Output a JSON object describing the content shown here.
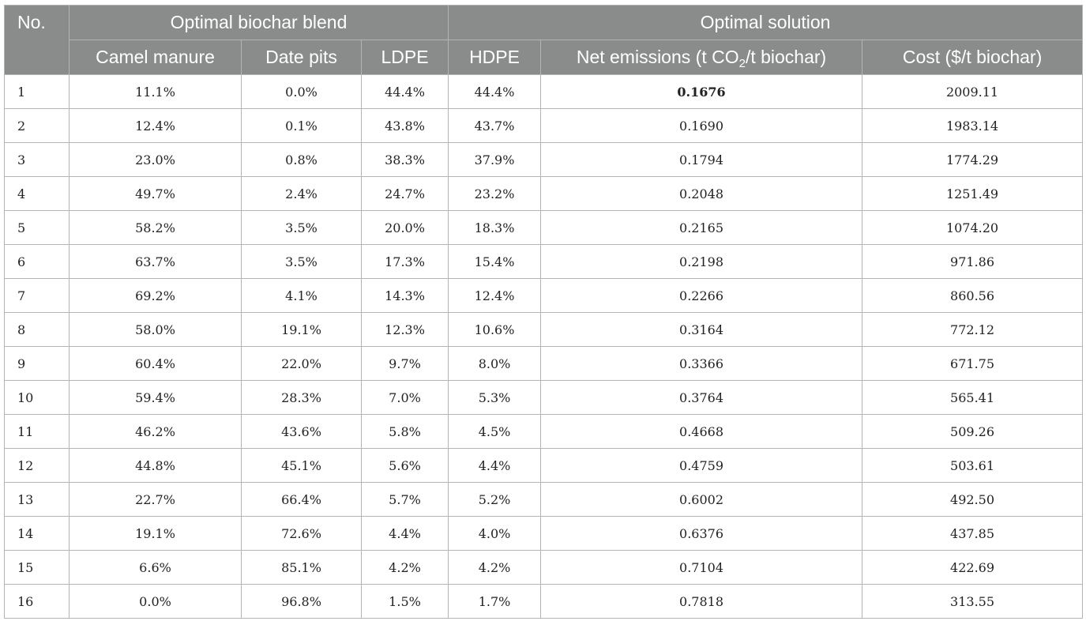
{
  "headers": {
    "no": "No.",
    "group_blend": "Optimal biochar blend",
    "group_solution": "Optimal solution",
    "camel": "Camel manure",
    "date": "Date pits",
    "ldpe": "LDPE",
    "hdpe": "HDPE",
    "net_prefix": "Net emissions (t CO",
    "net_sub": "2",
    "net_suffix": "/t biochar)",
    "cost": "Cost ($/t biochar)"
  },
  "rows": [
    {
      "no": "1",
      "camel": "11.1%",
      "date": "0.0%",
      "ldpe": "44.4%",
      "hdpe": "44.4%",
      "net": "0.1676",
      "cost": "2009.11",
      "net_bold": true
    },
    {
      "no": "2",
      "camel": "12.4%",
      "date": "0.1%",
      "ldpe": "43.8%",
      "hdpe": "43.7%",
      "net": "0.1690",
      "cost": "1983.14"
    },
    {
      "no": "3",
      "camel": "23.0%",
      "date": "0.8%",
      "ldpe": "38.3%",
      "hdpe": "37.9%",
      "net": "0.1794",
      "cost": "1774.29"
    },
    {
      "no": "4",
      "camel": "49.7%",
      "date": "2.4%",
      "ldpe": "24.7%",
      "hdpe": "23.2%",
      "net": "0.2048",
      "cost": "1251.49"
    },
    {
      "no": "5",
      "camel": "58.2%",
      "date": "3.5%",
      "ldpe": "20.0%",
      "hdpe": "18.3%",
      "net": "0.2165",
      "cost": "1074.20"
    },
    {
      "no": "6",
      "camel": "63.7%",
      "date": "3.5%",
      "ldpe": "17.3%",
      "hdpe": "15.4%",
      "net": "0.2198",
      "cost": "971.86"
    },
    {
      "no": "7",
      "camel": "69.2%",
      "date": "4.1%",
      "ldpe": "14.3%",
      "hdpe": "12.4%",
      "net": "0.2266",
      "cost": "860.56"
    },
    {
      "no": "8",
      "camel": "58.0%",
      "date": "19.1%",
      "ldpe": "12.3%",
      "hdpe": "10.6%",
      "net": "0.3164",
      "cost": "772.12"
    },
    {
      "no": "9",
      "camel": "60.4%",
      "date": "22.0%",
      "ldpe": "9.7%",
      "hdpe": "8.0%",
      "net": "0.3366",
      "cost": "671.75"
    },
    {
      "no": "10",
      "camel": "59.4%",
      "date": "28.3%",
      "ldpe": "7.0%",
      "hdpe": "5.3%",
      "net": "0.3764",
      "cost": "565.41"
    },
    {
      "no": "11",
      "camel": "46.2%",
      "date": "43.6%",
      "ldpe": "5.8%",
      "hdpe": "4.5%",
      "net": "0.4668",
      "cost": "509.26"
    },
    {
      "no": "12",
      "camel": "44.8%",
      "date": "45.1%",
      "ldpe": "5.6%",
      "hdpe": "4.4%",
      "net": "0.4759",
      "cost": "503.61"
    },
    {
      "no": "13",
      "camel": "22.7%",
      "date": "66.4%",
      "ldpe": "5.7%",
      "hdpe": "5.2%",
      "net": "0.6002",
      "cost": "492.50"
    },
    {
      "no": "14",
      "camel": "19.1%",
      "date": "72.6%",
      "ldpe": "4.4%",
      "hdpe": "4.0%",
      "net": "0.6376",
      "cost": "437.85"
    },
    {
      "no": "15",
      "camel": "6.6%",
      "date": "85.1%",
      "ldpe": "4.2%",
      "hdpe": "4.2%",
      "net": "0.7104",
      "cost": "422.69"
    },
    {
      "no": "16",
      "camel": "0.0%",
      "date": "96.8%",
      "ldpe": "1.5%",
      "hdpe": "1.7%",
      "net": "0.7818",
      "cost": "313.55"
    }
  ]
}
